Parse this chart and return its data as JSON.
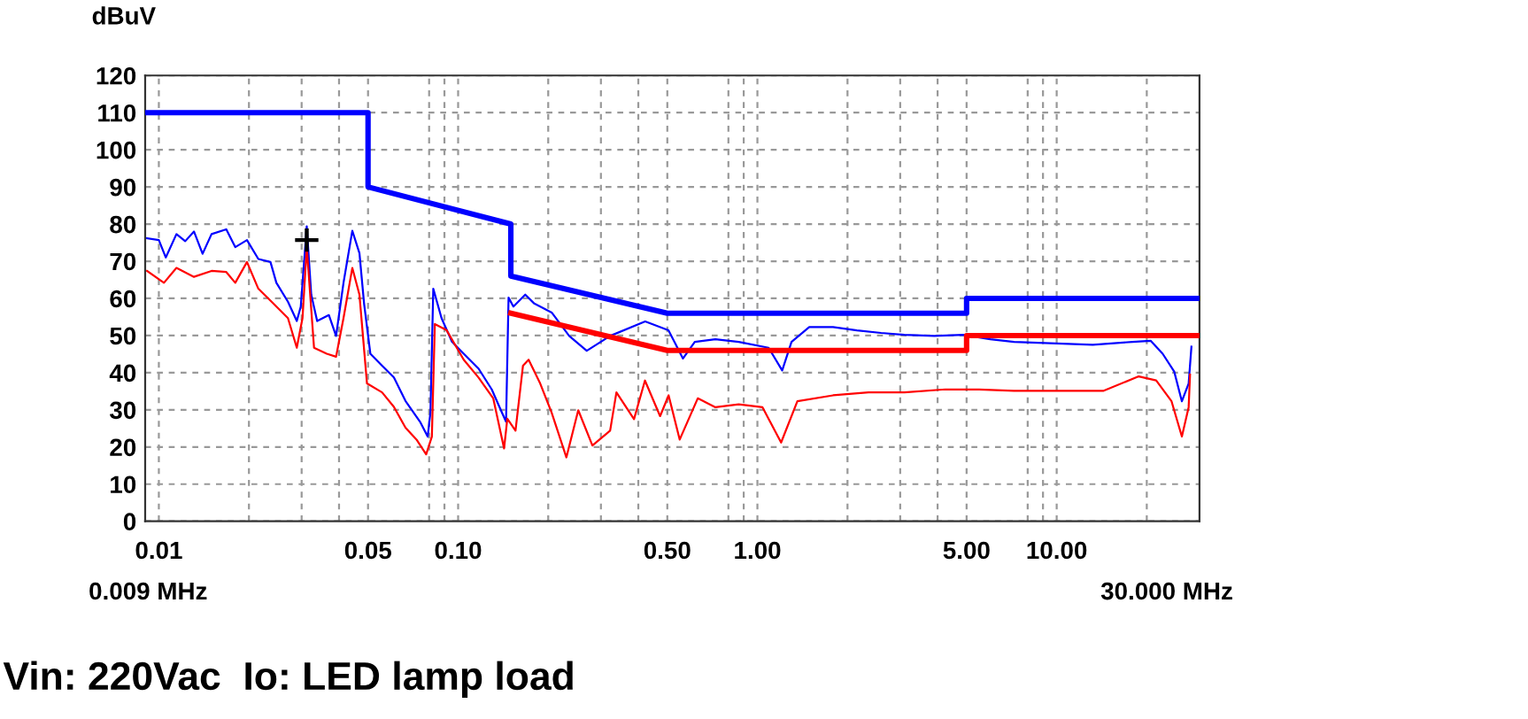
{
  "chart_data": {
    "type": "line",
    "ylabel": "dBuV",
    "annotations": [
      "0.009 MHz",
      "30.000 MHz",
      "Vin: 220Vac  Io: LED lamp load"
    ],
    "log": "x",
    "grid": true,
    "line_style": "solid",
    "xlim": [
      0.009,
      30
    ],
    "ylim": [
      0,
      120
    ],
    "xticks": [
      {
        "value": 0.01,
        "label": "0.01"
      },
      {
        "value": 0.02,
        "label": null
      },
      {
        "value": 0.03,
        "label": null
      },
      {
        "value": 0.04,
        "label": null
      },
      {
        "value": 0.05,
        "label": "0.05"
      },
      {
        "value": 0.08,
        "label": null
      },
      {
        "value": 0.09,
        "label": null
      },
      {
        "value": 0.1,
        "label": "0.10"
      },
      {
        "value": 0.2,
        "label": null
      },
      {
        "value": 0.3,
        "label": null
      },
      {
        "value": 0.4,
        "label": null
      },
      {
        "value": 0.5,
        "label": "0.50"
      },
      {
        "value": 0.8,
        "label": null
      },
      {
        "value": 0.9,
        "label": null
      },
      {
        "value": 1,
        "label": "1.00"
      },
      {
        "value": 2,
        "label": null
      },
      {
        "value": 3,
        "label": null
      },
      {
        "value": 4,
        "label": null
      },
      {
        "value": 5,
        "label": "5.00"
      },
      {
        "value": 8,
        "label": null
      },
      {
        "value": 9,
        "label": null
      },
      {
        "value": 10,
        "label": "10.00"
      },
      {
        "value": 20,
        "label": null
      }
    ],
    "yticks": [
      0,
      10,
      20,
      30,
      40,
      50,
      60,
      70,
      80,
      90,
      100,
      110,
      120
    ],
    "series": [
      {
        "color": "#0000ff",
        "x": [
          0.009,
          0.05,
          0.05,
          0.15,
          0.15,
          0.5,
          5,
          5,
          30
        ],
        "values": [
          110,
          110,
          90,
          80,
          66,
          56,
          56,
          60,
          60
        ]
      },
      {
        "color": "#ff0000",
        "x": [
          0.15,
          0.5,
          5,
          5,
          30
        ],
        "values": [
          56,
          46,
          46,
          50,
          50
        ]
      },
      {
        "color": "#0000ff",
        "x": [
          0.00913,
          0.01,
          0.01055,
          0.01145,
          0.01225,
          0.0131,
          0.014,
          0.015,
          0.0168,
          0.018,
          0.0197,
          0.0215,
          0.0236,
          0.0247,
          0.027,
          0.0289,
          0.0298,
          0.0312,
          0.0323,
          0.0338,
          0.037,
          0.0391,
          0.0414,
          0.0443,
          0.0468,
          0.0485,
          0.0509,
          0.0557,
          0.061,
          0.0667,
          0.0746,
          0.0791,
          0.0808,
          0.0826,
          0.088,
          0.0954,
          0.1044,
          0.117,
          0.1295,
          0.1402,
          0.1446,
          0.1474,
          0.153,
          0.1676,
          0.1797,
          0.2054,
          0.235,
          0.269,
          0.322,
          0.4217,
          0.5045,
          0.564,
          0.6176,
          0.7237,
          0.866,
          1.09,
          1.21,
          1.3,
          1.49,
          1.79,
          2.15,
          2.59,
          3.1,
          3.9,
          4.87,
          6.0,
          7.2,
          9.1,
          13.2,
          17.9,
          20.6,
          22.6,
          24.7,
          26.2,
          27.6,
          28.2
        ],
        "values": [
          76.2,
          75.7,
          71,
          77.3,
          75.4,
          78,
          72,
          77.3,
          78.6,
          73.8,
          75.7,
          70.6,
          69.8,
          64.2,
          59.1,
          53.9,
          57.8,
          79.4,
          61,
          53.9,
          55.5,
          49.9,
          64.2,
          78.2,
          72.2,
          58.6,
          45.1,
          41.9,
          38.7,
          32.4,
          26.8,
          22.8,
          29.2,
          62.6,
          54.7,
          48.3,
          45.1,
          41.1,
          35.5,
          29.2,
          26.8,
          60.2,
          57.8,
          61,
          58.6,
          56.2,
          49.9,
          45.9,
          49.9,
          53.8,
          51.4,
          43.8,
          48.3,
          49,
          48.3,
          46.7,
          40.6,
          48.3,
          52.3,
          52.3,
          51.4,
          50.7,
          50.2,
          49.9,
          50.2,
          49,
          48.3,
          48,
          47.5,
          48.3,
          48.6,
          45.1,
          40.3,
          32.3,
          37.1,
          47
        ]
      },
      {
        "color": "#ff0000",
        "x": [
          0.00913,
          0.0104,
          0.01145,
          0.0131,
          0.015,
          0.0168,
          0.018,
          0.0197,
          0.0215,
          0.0236,
          0.027,
          0.0289,
          0.0302,
          0.0312,
          0.033,
          0.0364,
          0.0391,
          0.0414,
          0.0443,
          0.0468,
          0.0496,
          0.0557,
          0.061,
          0.0667,
          0.0726,
          0.0782,
          0.0817,
          0.0836,
          0.0914,
          0.1044,
          0.117,
          0.131,
          0.1424,
          0.146,
          0.1555,
          0.1647,
          0.172,
          0.188,
          0.2054,
          0.23,
          0.252,
          0.281,
          0.322,
          0.338,
          0.387,
          0.421,
          0.473,
          0.505,
          0.55,
          0.632,
          0.724,
          0.866,
          1.04,
          1.2,
          1.36,
          1.79,
          2.35,
          3.1,
          4.24,
          5.5,
          7.2,
          7.66,
          14.3,
          18.8,
          21.5,
          24.2,
          26.2,
          27.6,
          27.9
        ],
        "values": [
          67.4,
          64.2,
          68.2,
          65.8,
          67.4,
          67.1,
          64.2,
          69.8,
          62.6,
          59.4,
          54.7,
          46.7,
          54.7,
          73.8,
          46.7,
          45.1,
          44.3,
          54.7,
          68.2,
          61,
          37.1,
          34.7,
          30.8,
          25.2,
          22,
          18,
          22.8,
          53.1,
          51.5,
          43.5,
          38.7,
          33.1,
          19.6,
          27.6,
          24.4,
          41.9,
          43.5,
          37.1,
          29.2,
          17.2,
          29.9,
          20.4,
          24.4,
          34.7,
          27.5,
          37.9,
          28.3,
          33.9,
          22,
          33.1,
          30.7,
          31.5,
          30.7,
          21.2,
          32.3,
          33.9,
          34.7,
          34.7,
          35.5,
          35.5,
          35.1,
          35.1,
          35.1,
          39,
          37.9,
          32.3,
          22.8,
          30.7,
          39.5
        ]
      },
      {
        "type": "scatter",
        "color": "#000000",
        "marker": "cross",
        "x": [
          0.0312
        ],
        "values": [
          75.7
        ]
      }
    ]
  }
}
